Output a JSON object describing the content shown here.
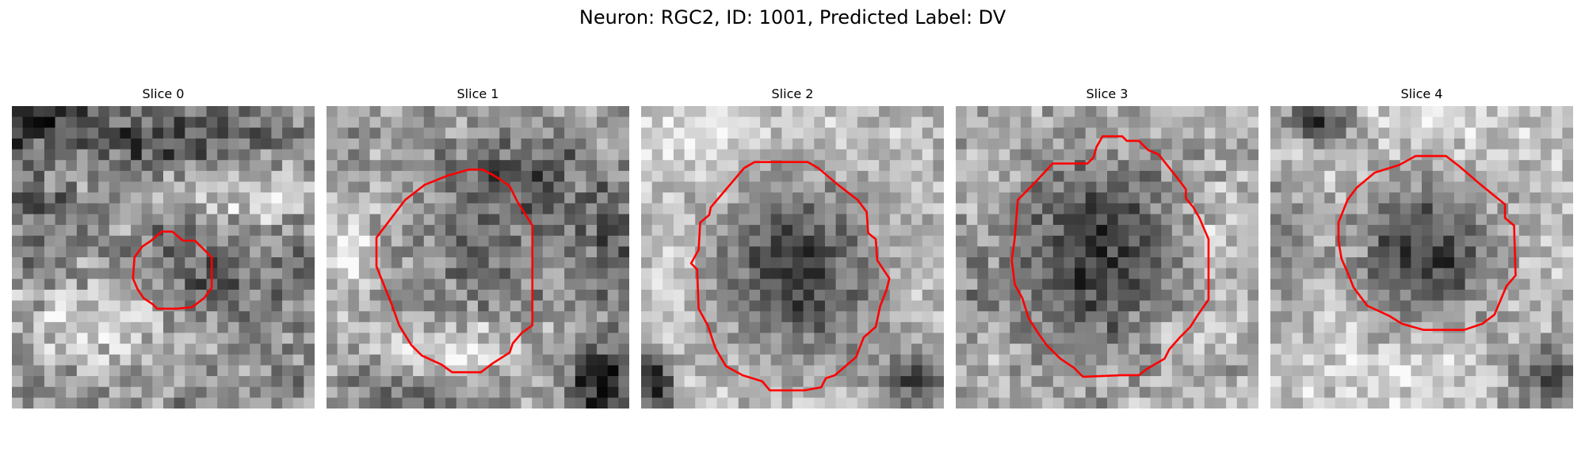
{
  "figure": {
    "title": "Neuron: RGC2, ID: 1001, Predicted Label: DV"
  },
  "panels": [
    {
      "title": "Slice 0",
      "seed": 17,
      "image": {
        "background_level": 0.58,
        "cell_center": [
          6.2,
          5.7
        ],
        "cell_radius": [
          2.1,
          2.0
        ],
        "cell_level": 0.36,
        "dark_patches": [
          {
            "center": [
              0.6,
              0.4
            ],
            "radius": [
              3.0,
              1.4
            ],
            "level": 0.18
          },
          {
            "center": [
              5.8,
              1.2
            ],
            "radius": [
              4.0,
              1.1
            ],
            "level": 0.26
          },
          {
            "center": [
              1.0,
              3.9
            ],
            "radius": [
              1.2,
              1.8
            ],
            "level": 0.38
          },
          {
            "center": [
              8.6,
              6.2
            ],
            "radius": [
              2.0,
              2.4
            ],
            "level": 0.48
          }
        ],
        "bright_patches": [
          {
            "center": [
              3.1,
              7.2
            ],
            "radius": [
              3.6,
              1.5
            ],
            "level": 0.88
          },
          {
            "center": [
              7.7,
              3.0
            ],
            "radius": [
              2.4,
              1.3
            ],
            "level": 0.84
          }
        ],
        "noise": 0.2
      },
      "contour": {
        "color": "#ff0000",
        "points": [
          [
            4.6,
            4.45
          ],
          [
            4.95,
            4.15
          ],
          [
            5.3,
            4.15
          ],
          [
            5.65,
            4.45
          ],
          [
            6.05,
            4.45
          ],
          [
            6.6,
            5.0
          ],
          [
            6.6,
            6.0
          ],
          [
            6.35,
            6.35
          ],
          [
            5.95,
            6.65
          ],
          [
            5.45,
            6.7
          ],
          [
            4.8,
            6.7
          ],
          [
            4.65,
            6.55
          ],
          [
            4.35,
            6.35
          ],
          [
            4.15,
            6.05
          ],
          [
            4.0,
            5.7
          ],
          [
            4.05,
            5.0
          ],
          [
            4.3,
            4.65
          ]
        ]
      }
    },
    {
      "title": "Slice 1",
      "seed": 29,
      "image": {
        "background_level": 0.62,
        "cell_center": [
          5.1,
          4.7
        ],
        "cell_radius": [
          2.3,
          2.2
        ],
        "cell_level": 0.42,
        "dark_patches": [
          {
            "center": [
              6.5,
              2.3
            ],
            "radius": [
              2.6,
              1.7
            ],
            "level": 0.32
          },
          {
            "center": [
              9.3,
              4.6
            ],
            "radius": [
              1.1,
              2.5
            ],
            "level": 0.33
          },
          {
            "center": [
              9.0,
              9.1
            ],
            "radius": [
              1.2,
              1.3
            ],
            "level": 0.08
          },
          {
            "center": [
              2.9,
              9.4
            ],
            "radius": [
              2.8,
              0.9
            ],
            "level": 0.4
          }
        ],
        "bright_patches": [
          {
            "center": [
              4.2,
              8.1
            ],
            "radius": [
              2.5,
              1.0
            ],
            "level": 0.9
          },
          {
            "center": [
              0.8,
              5.0
            ],
            "radius": [
              1.0,
              2.0
            ],
            "level": 0.9
          }
        ],
        "noise": 0.18
      },
      "contour": {
        "color": "#ff0000",
        "points": [
          [
            4.0,
            2.3
          ],
          [
            4.7,
            2.1
          ],
          [
            5.15,
            2.1
          ],
          [
            5.45,
            2.25
          ],
          [
            5.7,
            2.4
          ],
          [
            6.05,
            2.65
          ],
          [
            6.3,
            3.15
          ],
          [
            6.8,
            3.95
          ],
          [
            6.8,
            7.25
          ],
          [
            6.45,
            7.5
          ],
          [
            6.15,
            7.85
          ],
          [
            6.05,
            8.15
          ],
          [
            5.5,
            8.5
          ],
          [
            5.1,
            8.8
          ],
          [
            4.15,
            8.8
          ],
          [
            3.8,
            8.55
          ],
          [
            3.15,
            8.25
          ],
          [
            2.8,
            7.9
          ],
          [
            2.4,
            7.25
          ],
          [
            2.15,
            6.55
          ],
          [
            1.95,
            6.05
          ],
          [
            1.65,
            5.3
          ],
          [
            1.65,
            4.35
          ],
          [
            2.6,
            3.1
          ],
          [
            3.25,
            2.6
          ]
        ]
      }
    },
    {
      "title": "Slice 2",
      "seed": 43,
      "image": {
        "background_level": 0.74,
        "cell_center": [
          5.1,
          5.4
        ],
        "cell_radius": [
          3.0,
          3.3
        ],
        "cell_level": 0.22,
        "dark_patches": [
          {
            "center": [
              0.5,
              9.2
            ],
            "radius": [
              0.7,
              1.5
            ],
            "level": 0.12
          },
          {
            "center": [
              9.1,
              9.0
            ],
            "radius": [
              1.4,
              1.1
            ],
            "level": 0.25
          },
          {
            "center": [
              5.2,
              0.3
            ],
            "radius": [
              2.8,
              0.8
            ],
            "level": 0.78
          }
        ],
        "bright_patches": [
          {
            "center": [
              2.0,
              1.0
            ],
            "radius": [
              2.0,
              1.2
            ],
            "level": 0.93
          },
          {
            "center": [
              1.0,
              5.8
            ],
            "radius": [
              0.9,
              2.5
            ],
            "level": 0.87
          }
        ],
        "noise": 0.15
      },
      "contour": {
        "color": "#ff0000",
        "points": [
          [
            3.4,
            2.05
          ],
          [
            3.75,
            1.85
          ],
          [
            5.5,
            1.85
          ],
          [
            5.85,
            2.05
          ],
          [
            6.5,
            2.6
          ],
          [
            7.15,
            3.1
          ],
          [
            7.45,
            3.5
          ],
          [
            7.5,
            4.2
          ],
          [
            7.75,
            4.4
          ],
          [
            7.8,
            5.1
          ],
          [
            8.2,
            5.7
          ],
          [
            8.1,
            6.1
          ],
          [
            7.9,
            6.6
          ],
          [
            7.75,
            7.3
          ],
          [
            7.35,
            7.65
          ],
          [
            7.1,
            8.3
          ],
          [
            6.4,
            8.9
          ],
          [
            6.1,
            9.0
          ],
          [
            5.95,
            9.3
          ],
          [
            5.4,
            9.4
          ],
          [
            4.25,
            9.4
          ],
          [
            4.0,
            9.1
          ],
          [
            3.35,
            8.9
          ],
          [
            2.8,
            8.6
          ],
          [
            2.45,
            8.0
          ],
          [
            2.2,
            7.25
          ],
          [
            1.9,
            6.7
          ],
          [
            1.85,
            5.4
          ],
          [
            1.65,
            5.2
          ],
          [
            1.9,
            4.75
          ],
          [
            1.95,
            3.85
          ],
          [
            2.25,
            3.6
          ],
          [
            2.3,
            3.35
          ],
          [
            2.85,
            2.7
          ]
        ]
      }
    },
    {
      "title": "Slice 3",
      "seed": 61,
      "image": {
        "background_level": 0.68,
        "cell_center": [
          4.8,
          5.0
        ],
        "cell_radius": [
          3.2,
          3.6
        ],
        "cell_level": 0.2,
        "dark_patches": [
          {
            "center": [
              0.7,
              5.9
            ],
            "radius": [
              1.0,
              1.5
            ],
            "level": 0.54
          },
          {
            "center": [
              9.0,
              1.1
            ],
            "radius": [
              1.5,
              0.9
            ],
            "level": 0.62
          }
        ],
        "bright_patches": [
          {
            "center": [
              7.6,
              7.3
            ],
            "radius": [
              1.6,
              1.2
            ],
            "level": 0.9
          },
          {
            "center": [
              8.5,
              4.6
            ],
            "radius": [
              1.1,
              1.8
            ],
            "level": 0.88
          }
        ],
        "noise": 0.17
      },
      "contour": {
        "color": "#ff0000",
        "points": [
          [
            4.85,
            1.0
          ],
          [
            5.5,
            1.0
          ],
          [
            5.65,
            1.15
          ],
          [
            6.05,
            1.15
          ],
          [
            6.35,
            1.45
          ],
          [
            6.7,
            1.6
          ],
          [
            7.3,
            2.35
          ],
          [
            7.6,
            2.75
          ],
          [
            7.6,
            3.05
          ],
          [
            7.85,
            3.35
          ],
          [
            8.05,
            3.7
          ],
          [
            8.35,
            4.4
          ],
          [
            8.35,
            6.4
          ],
          [
            8.0,
            6.9
          ],
          [
            7.75,
            7.3
          ],
          [
            7.4,
            7.65
          ],
          [
            7.05,
            8.05
          ],
          [
            6.9,
            8.35
          ],
          [
            6.3,
            8.7
          ],
          [
            6.05,
            8.9
          ],
          [
            5.5,
            8.9
          ],
          [
            4.2,
            8.95
          ],
          [
            3.9,
            8.65
          ],
          [
            3.45,
            8.35
          ],
          [
            3.0,
            7.9
          ],
          [
            2.75,
            7.55
          ],
          [
            2.4,
            7.0
          ],
          [
            2.2,
            6.35
          ],
          [
            1.95,
            5.9
          ],
          [
            1.85,
            5.1
          ],
          [
            1.95,
            4.35
          ],
          [
            2.05,
            3.1
          ],
          [
            2.55,
            2.6
          ],
          [
            3.2,
            1.9
          ],
          [
            4.35,
            1.9
          ],
          [
            4.55,
            1.7
          ],
          [
            4.65,
            1.35
          ]
        ]
      }
    },
    {
      "title": "Slice 4",
      "seed": 79,
      "image": {
        "background_level": 0.75,
        "cell_center": [
          5.1,
          4.8
        ],
        "cell_radius": [
          2.6,
          2.5
        ],
        "cell_level": 0.18,
        "dark_patches": [
          {
            "center": [
              1.6,
              0.5
            ],
            "radius": [
              1.3,
              0.8
            ],
            "level": 0.22
          },
          {
            "center": [
              9.2,
              8.9
            ],
            "radius": [
              1.4,
              1.4
            ],
            "level": 0.3
          },
          {
            "center": [
              0.5,
              4.6
            ],
            "radius": [
              1.0,
              2.4
            ],
            "level": 0.48
          }
        ],
        "bright_patches": [
          {
            "center": [
              5.3,
              0.5
            ],
            "radius": [
              2.2,
              0.9
            ],
            "level": 0.93
          },
          {
            "center": [
              3.7,
              8.8
            ],
            "radius": [
              2.3,
              1.0
            ],
            "level": 0.9
          }
        ],
        "noise": 0.16
      },
      "contour": {
        "color": "#ff0000",
        "points": [
          [
            4.25,
            1.95
          ],
          [
            4.8,
            1.65
          ],
          [
            5.8,
            1.65
          ],
          [
            6.25,
            2.0
          ],
          [
            6.95,
            2.6
          ],
          [
            7.75,
            3.25
          ],
          [
            7.75,
            3.7
          ],
          [
            8.05,
            3.95
          ],
          [
            8.1,
            5.6
          ],
          [
            7.8,
            5.95
          ],
          [
            7.4,
            6.9
          ],
          [
            7.0,
            7.2
          ],
          [
            6.4,
            7.4
          ],
          [
            5.05,
            7.4
          ],
          [
            4.35,
            7.2
          ],
          [
            3.95,
            6.95
          ],
          [
            3.2,
            6.6
          ],
          [
            2.75,
            6.0
          ],
          [
            2.55,
            5.5
          ],
          [
            2.35,
            5.05
          ],
          [
            2.25,
            4.45
          ],
          [
            2.25,
            3.85
          ],
          [
            2.55,
            3.1
          ],
          [
            2.85,
            2.7
          ],
          [
            3.45,
            2.2
          ]
        ]
      }
    }
  ]
}
